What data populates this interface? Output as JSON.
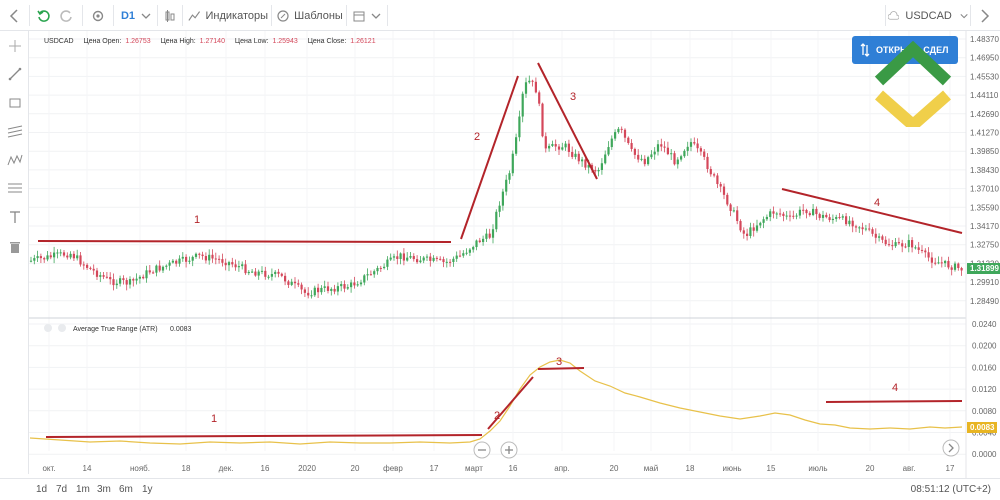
{
  "toolbar": {
    "interval": "D1",
    "indicators_label": "Индикаторы",
    "templates_label": "Шаблоны",
    "symbol": "USDCAD"
  },
  "info": {
    "symbol": "USDCAD",
    "open_label": "Цена Open:",
    "open": "1.26753",
    "high_label": "Цена High:",
    "high": "1.27140",
    "low_label": "Цена Low:",
    "low": "1.25943",
    "close_label": "Цена Close:",
    "close": "1.26121"
  },
  "open_deal_label": "ОТКРЫТЬ СДЕЛ",
  "price_axis": [
    "1.48370",
    "1.46950",
    "1.45530",
    "1.44110",
    "1.42690",
    "1.41270",
    "1.39850",
    "1.38430",
    "1.37010",
    "1.35590",
    "1.34170",
    "1.32750",
    "1.31330",
    "1.29910",
    "1.28490"
  ],
  "current_price": "1.31899",
  "atr": {
    "label": "Average True Range (ATR)",
    "value": "0.0083",
    "axis": [
      "0.0240",
      "0.0200",
      "0.0160",
      "0.0120",
      "0.0080",
      "0.0040",
      "0.0000"
    ],
    "tag": "0.0083"
  },
  "time_axis": [
    "окт.",
    "14",
    "нояб.",
    "18",
    "дек.",
    "16",
    "2020",
    "20",
    "февр",
    "17",
    "март",
    "16",
    "апр.",
    "20",
    "май",
    "18",
    "июнь",
    "15",
    "июль",
    "20",
    "авг.",
    "17"
  ],
  "annotations": {
    "price": [
      "1",
      "2",
      "3",
      "4"
    ],
    "atr": [
      "1",
      "2",
      "3",
      "4"
    ]
  },
  "ranges": [
    "1d",
    "7d",
    "1m",
    "3m",
    "6m",
    "1y"
  ],
  "clock": "08:51:12 (UTC+2)",
  "colors": {
    "bull": "#3fa75b",
    "bear": "#d4475a",
    "atr": "#e8c14a",
    "annotation": "#b3242a",
    "price_tag": "#3fa75b",
    "atr_tag": "#e8b523"
  }
}
